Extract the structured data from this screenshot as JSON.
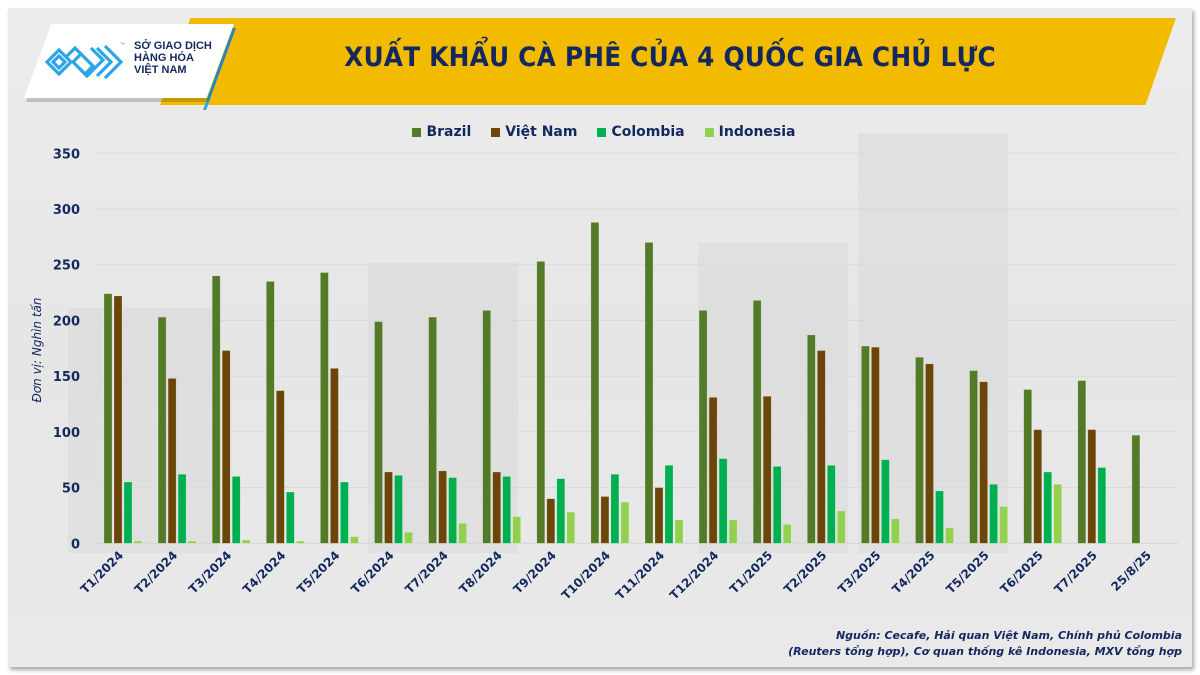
{
  "header": {
    "logo": {
      "lines": [
        "SỞ GIAO DỊCH",
        "HÀNG HÓA",
        "VIỆT NAM"
      ],
      "tm": "™",
      "brand_color": "#2aa6e8"
    },
    "title": "XUẤT KHẨU CÀ PHÊ CỦA 4 QUỐC GIA CHỦ LỰC",
    "banner_color": "#f3bb00"
  },
  "footer": {
    "source_line1": "Nguồn: Cecafe, Hải quan Việt Nam, Chính phủ Colombia",
    "source_line2": "(Reuters tổng hợp), Cơ quan thống kê Indonesia, MXV tổng hợp"
  },
  "chart_data": {
    "type": "bar",
    "title": "XUẤT KHẨU CÀ PHÊ CỦA 4 QUỐC GIA CHỦ LỰC",
    "xlabel": "",
    "ylabel": "Đơn vị: Nghìn tấn",
    "ylim": [
      0,
      350
    ],
    "yticks": [
      0,
      50,
      100,
      150,
      200,
      250,
      300,
      350
    ],
    "grid": true,
    "legend_position": "top",
    "categories": [
      "T1/2024",
      "T2/2024",
      "T3/2024",
      "T4/2024",
      "T5/2024",
      "T6/2024",
      "T7/2024",
      "T8/2024",
      "T9/2024",
      "T10/2024",
      "T11/2024",
      "T12/2024",
      "T1/2025",
      "T2/2025",
      "T3/2025",
      "T4/2025",
      "T5/2025",
      "T6/2025",
      "T7/2025",
      "25/8/25"
    ],
    "series": [
      {
        "name": "Brazil",
        "color": "#537b27",
        "values": [
          224,
          203,
          240,
          235,
          243,
          199,
          203,
          209,
          253,
          288,
          270,
          209,
          218,
          187,
          177,
          167,
          155,
          138,
          146,
          97
        ]
      },
      {
        "name": "Việt Nam",
        "color": "#6b4608",
        "values": [
          222,
          148,
          173,
          137,
          157,
          64,
          65,
          64,
          40,
          42,
          50,
          131,
          132,
          173,
          176,
          161,
          145,
          102,
          102,
          null
        ]
      },
      {
        "name": "Colombia",
        "color": "#00b050",
        "values": [
          55,
          62,
          60,
          46,
          55,
          61,
          59,
          60,
          58,
          62,
          70,
          76,
          69,
          70,
          75,
          47,
          53,
          64,
          68,
          null
        ]
      },
      {
        "name": "Indonesia",
        "color": "#92d050",
        "values": [
          2,
          2,
          3,
          2,
          6,
          10,
          18,
          24,
          28,
          37,
          21,
          21,
          17,
          29,
          22,
          14,
          33,
          53,
          null,
          null
        ]
      }
    ]
  }
}
